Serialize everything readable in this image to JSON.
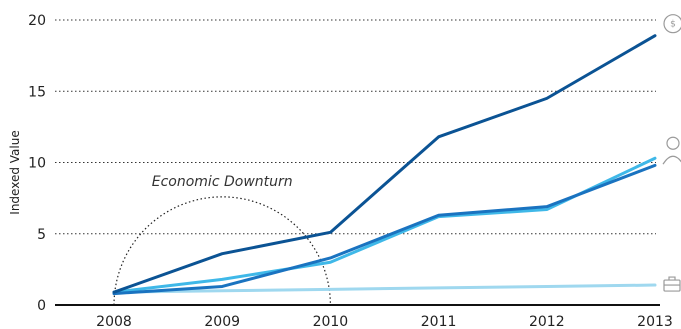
{
  "chart_data": {
    "type": "line",
    "title": "",
    "xlabel": "",
    "ylabel": "Indexed Value",
    "categories": [
      "2008",
      "2009",
      "2010",
      "2011",
      "2012",
      "2013"
    ],
    "x": [
      2008,
      2009,
      2010,
      2011,
      2012,
      2013
    ],
    "ylim": [
      0,
      20
    ],
    "yticks": [
      "0",
      "5",
      "10",
      "15",
      "20"
    ],
    "grid": true,
    "series": [
      {
        "icon": "dollar-icon",
        "color": "#0b5394",
        "values": [
          0.9,
          3.6,
          5.1,
          11.8,
          14.5,
          18.9
        ]
      },
      {
        "icon": "person-icon",
        "color": "#1a73c0",
        "values": [
          0.8,
          1.3,
          3.3,
          6.3,
          6.9,
          9.8
        ]
      },
      {
        "icon": "person-icon",
        "color": "#3fb8e8",
        "values": [
          0.9,
          1.8,
          3.0,
          6.2,
          6.7,
          10.3
        ]
      },
      {
        "icon": "briefcase-icon",
        "color": "#9fd8ef",
        "values": [
          0.9,
          1.0,
          1.1,
          1.2,
          1.3,
          1.4
        ]
      }
    ],
    "annotation": {
      "label": "Economic Downturn",
      "x_start": 2008,
      "x_end": 2010
    }
  },
  "icons": {
    "dollar_symbol": "$"
  }
}
